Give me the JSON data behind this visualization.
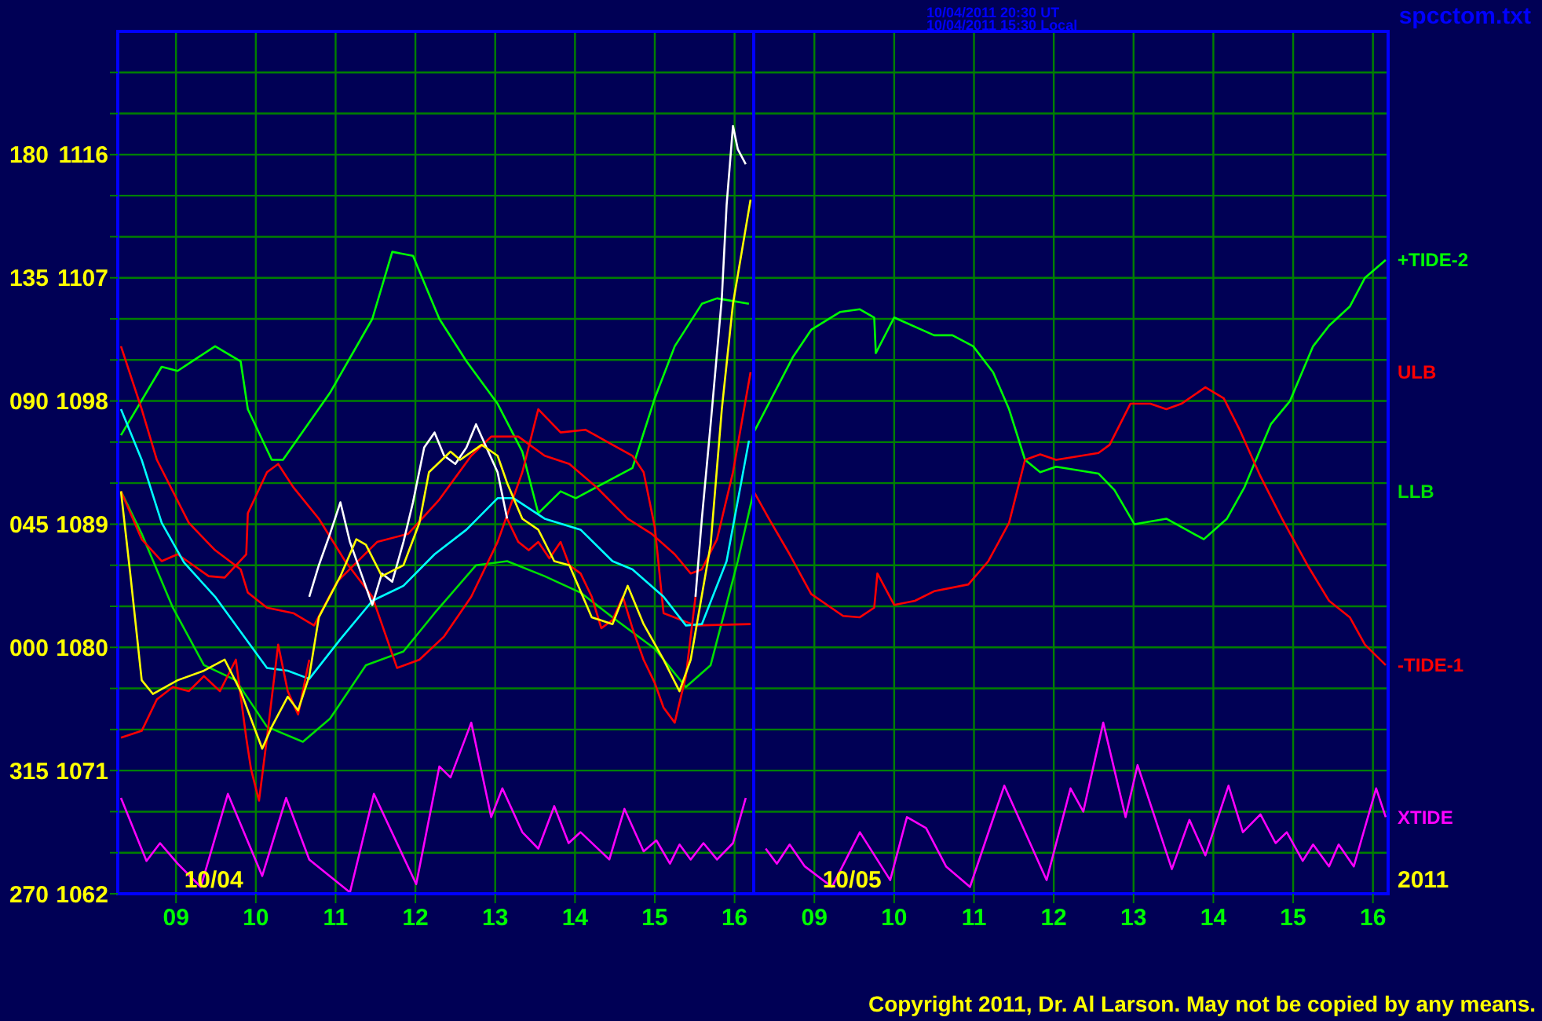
{
  "chart_data": [
    {
      "type": "line",
      "annotations": [
        "10/04/2011 20:30 UT",
        "10/04/2011 15:30 Local",
        "spcctom.txt",
        "10/04",
        "Copyright 2011, Dr. Al Larson. May not be copied by any means."
      ],
      "xlim": [
        8.27,
        16.24
      ],
      "xticks": [
        {
          "value": 9,
          "label": "09"
        },
        10,
        11,
        12,
        13,
        14,
        15,
        16
      ],
      "ylim": [
        1062,
        1125
      ],
      "yticks": [
        1062,
        {
          "value": 1065,
          "label": null
        },
        {
          "value": 1068,
          "label": null
        },
        1071,
        {
          "value": 1074,
          "label": null
        },
        {
          "value": 1077,
          "label": null
        },
        1080,
        {
          "value": 1083,
          "label": null
        },
        {
          "value": 1086,
          "label": null
        },
        1089,
        {
          "value": 1092,
          "label": null
        },
        {
          "value": 1095,
          "label": null
        },
        1098,
        {
          "value": 1101,
          "label": null
        },
        {
          "value": 1104,
          "label": null
        },
        1107,
        {
          "value": 1110,
          "label": null
        },
        {
          "value": 1113,
          "label": null
        },
        1116,
        {
          "value": 1119,
          "label": null
        },
        {
          "value": 1122,
          "label": null
        }
      ],
      "y2lim": [
        270,
        585
      ],
      "y2ticks": [
        270,
        315
      ],
      "y3lim": [
        -90,
        225
      ],
      "y3ticks": [
        {
          "value": 0,
          "label": "000"
        },
        {
          "value": 45,
          "label": "045"
        },
        {
          "value": 90,
          "label": "090"
        },
        135,
        180
      ],
      "grid": true,
      "legend": false,
      "series": [
        {
          "color": "#00ff00",
          "x": [
            8.31,
            8.82,
            9.02,
            9.49,
            9.81,
            9.9,
            10.2,
            10.34,
            10.93,
            11.46,
            11.71,
            11.97,
            12.3,
            12.64,
            13.03,
            13.34,
            13.54,
            13.82,
            14.01,
            14.72,
            15.0,
            15.25,
            15.59,
            15.78,
            16.18
          ],
          "values": [
            1095.5,
            1100.5,
            1100.2,
            1102.0,
            1100.9,
            1097.4,
            1093.7,
            1093.7,
            1098.6,
            1104.0,
            1108.9,
            1108.6,
            1104.0,
            1100.9,
            1097.8,
            1094.3,
            1089.8,
            1091.4,
            1090.9,
            1093.1,
            1098.2,
            1102.0,
            1105.1,
            1105.5,
            1105.1
          ]
        },
        {
          "name": "ULB",
          "color": "#ff0000",
          "x": [
            8.31,
            8.57,
            8.76,
            9.16,
            9.49,
            9.81,
            9.9,
            10.14,
            10.47,
            10.73,
            11.02,
            11.52,
            11.91,
            12.3,
            12.7,
            12.95,
            13.29,
            13.62,
            13.93,
            14.27,
            14.66,
            14.96,
            15.25,
            15.45,
            15.59,
            15.78,
            15.98,
            16.2
          ],
          "values": [
            1102.0,
            1097.4,
            1093.7,
            1089.1,
            1087.1,
            1085.7,
            1084.0,
            1082.9,
            1082.5,
            1081.6,
            1084.8,
            1087.7,
            1088.3,
            1090.8,
            1094.0,
            1095.4,
            1095.4,
            1094.0,
            1093.4,
            1091.7,
            1089.4,
            1088.3,
            1086.8,
            1085.4,
            1085.7,
            1087.9,
            1092.8,
            1100.1
          ]
        },
        {
          "name": "LLB",
          "color": "#00e000",
          "x": [
            8.31,
            8.57,
            8.96,
            9.35,
            9.75,
            10.14,
            10.59,
            10.93,
            11.38,
            11.85,
            12.24,
            12.76,
            13.15,
            13.62,
            14.07,
            14.47,
            15.0,
            15.39,
            15.7,
            16.04,
            16.24
          ],
          "values": [
            1091.4,
            1088.3,
            1082.9,
            1078.7,
            1077.6,
            1074.2,
            1073.1,
            1074.8,
            1078.7,
            1079.7,
            1082.5,
            1086.0,
            1086.3,
            1085.2,
            1084.0,
            1082.2,
            1079.9,
            1077.1,
            1078.7,
            1086.3,
            1091.4
          ]
        },
        {
          "color": "#ff0000",
          "x": [
            8.31,
            8.57,
            8.82,
            9.02,
            9.41,
            9.61,
            9.88,
            9.9,
            10.14,
            10.28,
            10.47,
            10.79,
            11.12,
            11.46,
            11.77,
            12.05,
            12.36,
            12.7,
            13.03,
            13.34,
            13.54,
            13.82,
            14.13,
            14.72,
            14.86,
            15.0,
            15.11,
            15.51,
            16.2
          ],
          "values": [
            1091.4,
            1087.9,
            1086.3,
            1086.8,
            1085.2,
            1085.1,
            1086.8,
            1089.8,
            1092.8,
            1093.4,
            1091.7,
            1089.4,
            1086.3,
            1083.7,
            1078.5,
            1079.1,
            1080.8,
            1083.7,
            1087.7,
            1092.8,
            1097.4,
            1095.7,
            1095.9,
            1094.0,
            1092.8,
            1088.8,
            1082.5,
            1081.6,
            1081.7
          ]
        },
        {
          "color": "#ff00ff",
          "x": [
            8.31,
            8.63,
            8.8,
            9.02,
            9.31,
            9.65,
            10.08,
            10.38,
            10.67,
            11.18,
            11.48,
            12.01,
            12.3,
            12.44,
            12.7,
            12.95,
            13.09,
            13.34,
            13.54,
            13.74,
            13.92,
            14.07,
            14.43,
            14.62,
            14.86,
            15.02,
            15.19,
            15.31,
            15.45,
            15.61,
            15.78,
            15.98,
            16.14
          ],
          "values": [
            1069.0,
            1064.4,
            1065.7,
            1064.2,
            1062.5,
            1069.3,
            1063.3,
            1069.0,
            1064.5,
            1062.1,
            1069.3,
            1062.7,
            1071.3,
            1070.5,
            1074.5,
            1067.6,
            1069.7,
            1066.5,
            1065.3,
            1068.4,
            1065.7,
            1066.5,
            1064.5,
            1068.2,
            1065.1,
            1065.9,
            1064.2,
            1065.6,
            1064.5,
            1065.7,
            1064.5,
            1065.7,
            1069.0
          ]
        },
        {
          "color": "#00ffff",
          "x": [
            8.31,
            8.57,
            8.82,
            9.1,
            9.49,
            10.14,
            10.4,
            10.67,
            11.06,
            11.46,
            11.85,
            12.24,
            12.64,
            13.03,
            13.23,
            13.62,
            14.07,
            14.47,
            14.72,
            15.11,
            15.39,
            15.59,
            15.9,
            16.18
          ],
          "values": [
            1097.4,
            1093.7,
            1089.1,
            1086.2,
            1083.7,
            1078.5,
            1078.3,
            1077.7,
            1080.6,
            1083.4,
            1084.5,
            1086.8,
            1088.6,
            1090.9,
            1090.9,
            1089.4,
            1088.6,
            1086.3,
            1085.7,
            1083.7,
            1081.6,
            1081.7,
            1086.3,
            1095.1
          ]
        },
        {
          "color": "#ff0000",
          "x": [
            8.31,
            8.57,
            8.76,
            8.96,
            9.16,
            9.35,
            9.55,
            9.75,
            9.88,
            9.94,
            10.04,
            10.14,
            10.28,
            10.4,
            10.53,
            10.67
          ],
          "values": [
            1073.4,
            1073.9,
            1076.2,
            1077.1,
            1076.8,
            1077.9,
            1076.8,
            1079.1,
            1073.4,
            1071.1,
            1068.8,
            1073.4,
            1080.2,
            1076.8,
            1075.1,
            1079.1
          ]
        },
        {
          "color": "#ffffff",
          "x": [
            10.67,
            10.79,
            10.93,
            11.06,
            11.18,
            11.32,
            11.46,
            11.58,
            11.71,
            11.85,
            11.97,
            12.11,
            12.24,
            12.36,
            12.5,
            12.64,
            12.76,
            12.89,
            13.03,
            13.15
          ],
          "values": [
            1083.7,
            1086.0,
            1088.3,
            1090.6,
            1087.7,
            1085.4,
            1083.1,
            1085.4,
            1084.8,
            1087.7,
            1090.6,
            1094.6,
            1095.7,
            1094.0,
            1093.4,
            1094.6,
            1096.3,
            1094.6,
            1092.8,
            1089.4
          ]
        },
        {
          "color": "#ff0000",
          "x": [
            13.15,
            13.29,
            13.42,
            13.54,
            13.68,
            13.82,
            13.93,
            14.07,
            14.21,
            14.33,
            14.47,
            14.6,
            14.72,
            14.86,
            15.0,
            15.11,
            15.25,
            15.39,
            15.51
          ],
          "values": [
            1089.4,
            1087.7,
            1087.1,
            1087.7,
            1086.5,
            1087.7,
            1086.0,
            1085.4,
            1083.7,
            1081.4,
            1082.0,
            1083.7,
            1081.4,
            1079.1,
            1077.4,
            1075.6,
            1074.5,
            1077.9,
            1083.7
          ]
        },
        {
          "color": "#ffffff",
          "x": [
            15.51,
            15.59,
            15.7,
            15.84,
            15.9,
            15.98,
            16.04,
            16.14
          ],
          "values": [
            1083.7,
            1089.4,
            1096.3,
            1105.5,
            1112.3,
            1118.1,
            1116.4,
            1115.3
          ]
        },
        {
          "color": "#ffff00",
          "x": [
            8.31,
            8.43,
            8.57,
            8.71,
            9.02,
            9.35,
            9.61,
            9.81,
            10.08,
            10.2,
            10.4,
            10.53,
            10.67,
            10.79,
            11.06,
            11.26,
            11.38,
            11.58,
            11.85,
            12.05,
            12.17,
            12.44,
            12.56,
            12.83,
            13.03,
            13.15,
            13.34,
            13.54,
            13.74,
            13.93,
            14.21,
            14.47,
            14.66,
            14.86,
            15.11,
            15.31,
            15.45,
            15.7,
            15.84,
            15.98,
            16.2
          ],
          "values": [
            1091.4,
            1085.2,
            1077.6,
            1076.6,
            1077.6,
            1078.3,
            1079.1,
            1076.8,
            1072.6,
            1074.2,
            1076.4,
            1075.4,
            1077.9,
            1082.2,
            1085.2,
            1087.9,
            1087.5,
            1085.2,
            1086.0,
            1089.1,
            1092.8,
            1094.3,
            1093.7,
            1094.8,
            1094.0,
            1092.0,
            1089.4,
            1088.6,
            1086.3,
            1086.0,
            1082.2,
            1081.7,
            1084.5,
            1081.7,
            1079.1,
            1076.8,
            1079.1,
            1087.5,
            1097.4,
            1105.1,
            1112.7
          ]
        }
      ]
    },
    {
      "type": "line",
      "annotations": [
        "10/05",
        "2011"
      ],
      "xlim": [
        8.24,
        16.19
      ],
      "xticks": [
        {
          "value": 9,
          "label": "09"
        },
        10,
        11,
        12,
        13,
        14,
        15,
        16
      ],
      "ylim": [
        1062,
        1125
      ],
      "yticks": [
        1062,
        {
          "value": 1065,
          "label": null
        },
        {
          "value": 1068,
          "label": null
        },
        1071,
        {
          "value": 1074,
          "label": null
        },
        {
          "value": 1077,
          "label": null
        },
        1080,
        {
          "value": 1083,
          "label": null
        },
        {
          "value": 1086,
          "label": null
        },
        1089,
        {
          "value": 1092,
          "label": null
        },
        {
          "value": 1095,
          "label": null
        },
        1098,
        {
          "value": 1101,
          "label": null
        },
        {
          "value": 1104,
          "label": null
        },
        1107,
        {
          "value": 1110,
          "label": null
        },
        {
          "value": 1113,
          "label": null
        },
        1116,
        {
          "value": 1119,
          "label": null
        },
        {
          "value": 1122,
          "label": null
        }
      ],
      "tick_labels": "x",
      "grid": true,
      "legend": false,
      "series": [
        {
          "name": "+TIDE-2",
          "color": "#00ff00",
          "x": [
            8.24,
            8.73,
            8.96,
            9.32,
            9.57,
            9.75,
            9.77,
            10.0,
            10.5,
            10.73,
            10.99,
            11.24,
            11.44,
            11.64,
            11.83,
            12.03,
            12.56,
            12.76,
            13.01,
            13.41,
            13.88,
            14.17,
            14.39,
            14.72,
            14.96,
            15.25,
            15.45,
            15.71,
            15.9,
            16.16
          ],
          "values": [
            1095.7,
            1101.2,
            1103.2,
            1104.5,
            1104.7,
            1104.1,
            1101.5,
            1104.1,
            1102.8,
            1102.8,
            1102.0,
            1100.1,
            1097.4,
            1093.7,
            1092.8,
            1093.2,
            1092.7,
            1091.5,
            1089.0,
            1089.4,
            1087.9,
            1089.4,
            1091.7,
            1096.3,
            1098.0,
            1102.0,
            1103.5,
            1104.9,
            1107.0,
            1108.3
          ]
        },
        {
          "name": "-TIDE-1",
          "color": "#ff0000",
          "x": [
            8.24,
            8.43,
            8.69,
            8.96,
            9.36,
            9.57,
            9.75,
            9.79,
            10.0,
            10.26,
            10.5,
            10.93,
            11.18,
            11.44,
            11.64,
            11.83,
            12.03,
            12.56,
            12.7,
            12.96,
            13.21,
            13.41,
            13.6,
            13.9,
            14.13,
            14.33,
            14.59,
            14.86,
            15.18,
            15.45,
            15.71,
            15.9,
            16.16
          ],
          "values": [
            1091.4,
            1089.4,
            1086.8,
            1083.9,
            1082.3,
            1082.2,
            1082.9,
            1085.4,
            1083.1,
            1083.4,
            1084.1,
            1084.6,
            1086.3,
            1089.1,
            1093.7,
            1094.1,
            1093.7,
            1094.2,
            1094.8,
            1097.8,
            1097.8,
            1097.4,
            1097.8,
            1099.0,
            1098.2,
            1095.9,
            1092.5,
            1089.4,
            1086.0,
            1083.4,
            1082.2,
            1080.2,
            1078.7
          ]
        },
        {
          "name": "XTIDE",
          "color": "#ff00ff",
          "x": [
            8.39,
            8.53,
            8.69,
            8.88,
            9.22,
            9.57,
            9.95,
            10.16,
            10.4,
            10.65,
            10.95,
            11.38,
            11.91,
            12.21,
            12.37,
            12.62,
            12.9,
            13.05,
            13.48,
            13.7,
            13.9,
            14.19,
            14.37,
            14.59,
            14.78,
            14.92,
            15.12,
            15.25,
            15.45,
            15.57,
            15.76,
            16.04,
            16.16
          ],
          "values": [
            1065.3,
            1064.2,
            1065.6,
            1064.0,
            1062.5,
            1066.5,
            1063.0,
            1067.6,
            1066.8,
            1064.0,
            1062.5,
            1069.9,
            1063.0,
            1069.7,
            1068.0,
            1074.5,
            1067.6,
            1071.4,
            1063.8,
            1067.4,
            1064.8,
            1069.9,
            1066.5,
            1067.8,
            1065.7,
            1066.5,
            1064.4,
            1065.6,
            1064.0,
            1065.6,
            1064.0,
            1069.7,
            1067.6
          ]
        }
      ]
    }
  ]
}
